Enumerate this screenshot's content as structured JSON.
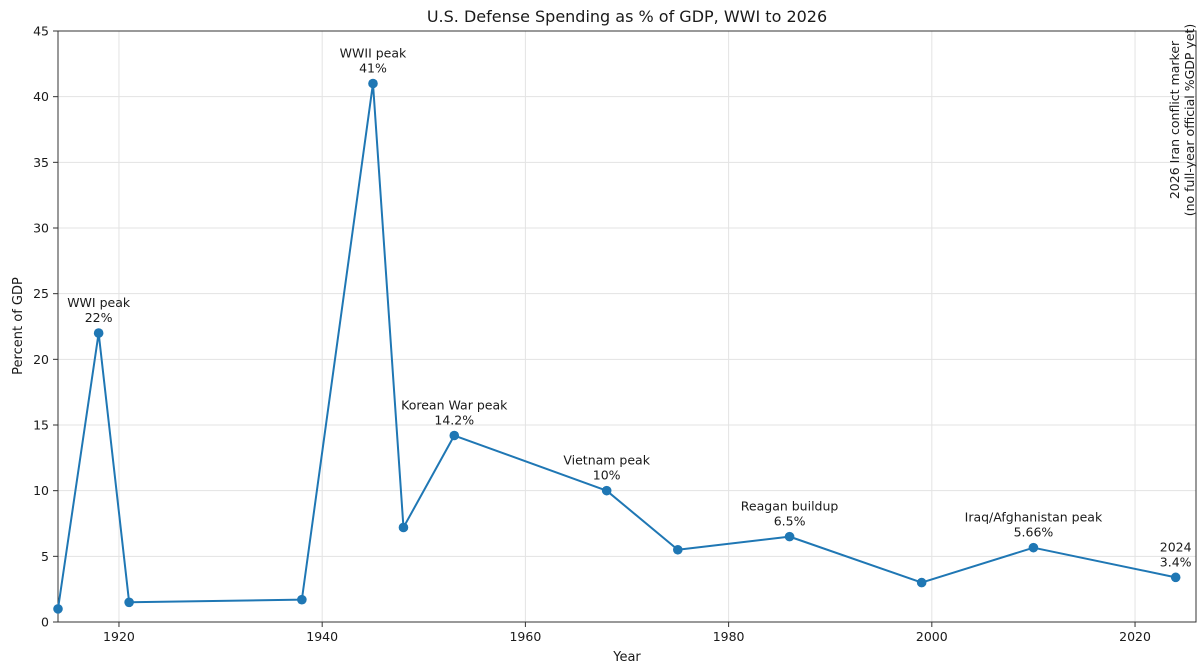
{
  "chart_data": {
    "type": "line",
    "title": "U.S. Defense Spending as % of GDP, WWI to 2026",
    "xlabel": "Year",
    "ylabel": "Percent of GDP",
    "xlim": [
      1914,
      2026
    ],
    "ylim": [
      0,
      45
    ],
    "xticks": [
      1920,
      1940,
      1960,
      1980,
      2000,
      2020
    ],
    "yticks": [
      0,
      5,
      10,
      15,
      20,
      25,
      30,
      35,
      40,
      45
    ],
    "grid": true,
    "legend": "none",
    "colors": {
      "line": "#1f77b4",
      "grid": "#e3e3e3",
      "axes": "#333333"
    },
    "series": [
      {
        "x": [
          1914,
          1918,
          1921,
          1938,
          1945,
          1948,
          1953,
          1968,
          1975,
          1986,
          1999,
          2010,
          2024
        ],
        "values": [
          1,
          22,
          1.5,
          1.7,
          41,
          7.2,
          14.2,
          10,
          5.5,
          6.5,
          3,
          5.66,
          3.4
        ]
      }
    ],
    "annotations": [
      {
        "x": 1918,
        "y": 22,
        "lines": [
          "WWI peak",
          "22%"
        ]
      },
      {
        "x": 1945,
        "y": 41,
        "lines": [
          "WWII peak",
          "41%"
        ]
      },
      {
        "x": 1953,
        "y": 14.2,
        "lines": [
          "Korean War peak",
          "14.2%"
        ]
      },
      {
        "x": 1968,
        "y": 10,
        "lines": [
          "Vietnam peak",
          "10%"
        ]
      },
      {
        "x": 1986,
        "y": 6.5,
        "lines": [
          "Reagan buildup",
          "6.5%"
        ]
      },
      {
        "x": 2010,
        "y": 5.66,
        "lines": [
          "Iraq/Afghanistan peak",
          "5.66%"
        ]
      },
      {
        "x": 2024,
        "y": 3.4,
        "lines": [
          "2024",
          "3.4%"
        ]
      }
    ],
    "side_note": {
      "x": 2026,
      "lines": [
        "2026 Iran conflict marker",
        "(no full-year official %GDP yet)"
      ]
    }
  }
}
